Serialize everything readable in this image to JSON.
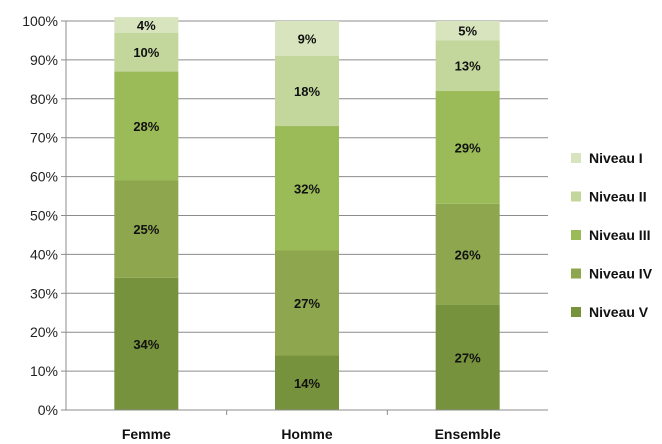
{
  "chart_data": {
    "type": "bar",
    "stacked": true,
    "categories": [
      "Femme",
      "Homme",
      "Ensemble"
    ],
    "series": [
      {
        "name": "Niveau V",
        "values": [
          34,
          14,
          27
        ],
        "labels": [
          "34%",
          "14%",
          "27%"
        ],
        "color": "#76923c"
      },
      {
        "name": "Niveau IV",
        "values": [
          25,
          27,
          26
        ],
        "labels": [
          "25%",
          "27%",
          "26%"
        ],
        "color": "#8ea64e"
      },
      {
        "name": "Niveau III",
        "values": [
          28,
          32,
          29
        ],
        "labels": [
          "28%",
          "32%",
          "29%"
        ],
        "color": "#9bbb59"
      },
      {
        "name": "Niveau II",
        "values": [
          10,
          18,
          13
        ],
        "labels": [
          "10%",
          "18%",
          "13%"
        ],
        "color": "#c3d69b"
      },
      {
        "name": "Niveau I",
        "values": [
          4,
          9,
          5
        ],
        "labels": [
          "4%",
          "9%",
          "5%"
        ],
        "color": "#d7e4bd"
      }
    ],
    "ylim": [
      0,
      100
    ],
    "yticks": [
      "0%",
      "10%",
      "20%",
      "30%",
      "40%",
      "50%",
      "60%",
      "70%",
      "80%",
      "90%",
      "100%"
    ],
    "grid": true,
    "legend_position": "right",
    "legend_order": [
      "Niveau I",
      "Niveau II",
      "Niveau III",
      "Niveau IV",
      "Niveau V"
    ]
  }
}
